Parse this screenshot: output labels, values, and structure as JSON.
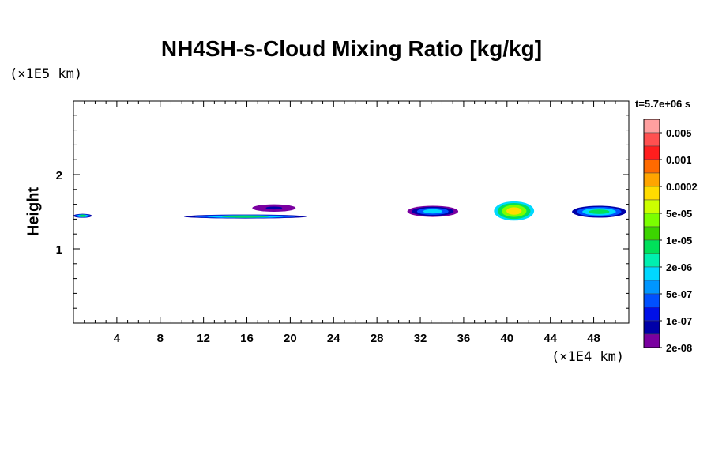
{
  "chart_data": {
    "type": "heatmap",
    "title": "NH4SH-s-Cloud Mixing Ratio [kg/kg]",
    "ylabel": "Height",
    "xlabel": "",
    "y_unit": "(×1E5 km)",
    "x_unit": "(×1E4 km)",
    "time_label": "t=5.7e+06 s",
    "xlim": [
      0,
      51
    ],
    "ylim": [
      0,
      3
    ],
    "x_ticks": [
      4,
      8,
      12,
      16,
      20,
      24,
      28,
      32,
      36,
      40,
      44,
      48
    ],
    "y_ticks": [
      1,
      2
    ],
    "colorbar": {
      "colors": [
        "#ff9f9f",
        "#ff5050",
        "#ff1e1e",
        "#ff6a00",
        "#ffa500",
        "#ffdc00",
        "#ccff00",
        "#7bff00",
        "#3cd400",
        "#00e05a",
        "#00f0b0",
        "#00d8ff",
        "#0096ff",
        "#0050ff",
        "#0010e8",
        "#0000a8",
        "#7a00a0"
      ],
      "labels": [
        "0.005",
        "0.001",
        "0.0002",
        "5e-05",
        "1e-05",
        "2e-06",
        "5e-07",
        "1e-07",
        "2e-08"
      ]
    },
    "cloud_features": [
      {
        "x0": 0.0,
        "x1": 1.7,
        "y0": 1.42,
        "y1": 1.47,
        "level": "1e-05"
      },
      {
        "x0": 10.2,
        "x1": 21.5,
        "y0": 1.41,
        "y1": 1.46,
        "level": "1e-05"
      },
      {
        "x0": 16.5,
        "x1": 20.5,
        "y0": 1.5,
        "y1": 1.6,
        "level": "1e-07"
      },
      {
        "x0": 30.8,
        "x1": 35.5,
        "y0": 1.43,
        "y1": 1.58,
        "level": "2e-06"
      },
      {
        "x0": 38.8,
        "x1": 42.5,
        "y0": 1.38,
        "y1": 1.64,
        "level": "0.0002"
      },
      {
        "x0": 46.0,
        "x1": 51.0,
        "y0": 1.42,
        "y1": 1.58,
        "level": "1e-05"
      }
    ]
  }
}
